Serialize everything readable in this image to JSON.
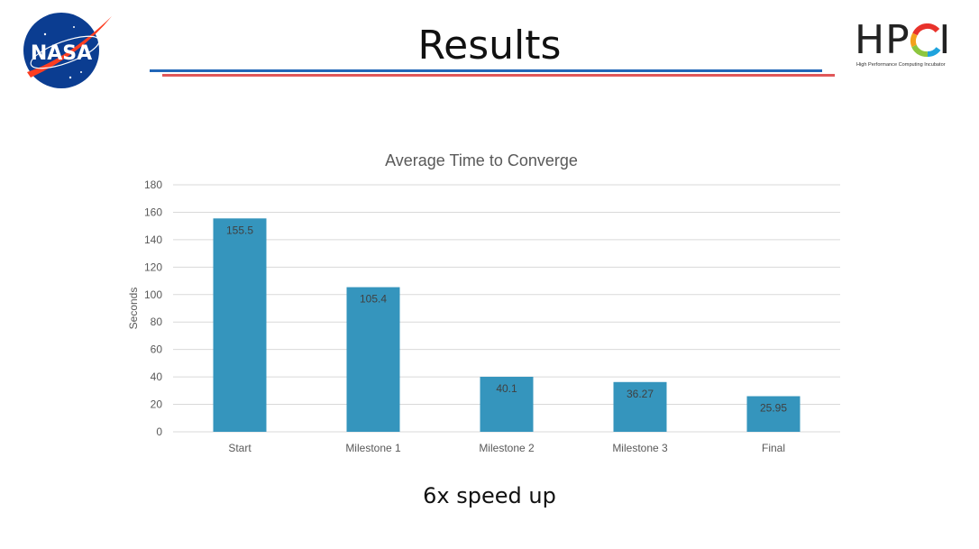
{
  "slide": {
    "title": "Results",
    "footer": "6x speed up"
  },
  "logos": {
    "left": {
      "name": "nasa-logo",
      "text": "NASA",
      "colors": {
        "blue": "#0b3d91",
        "red": "#fc3d21"
      }
    },
    "right": {
      "name": "hpci-logo",
      "text": "HPCI",
      "subtitle": "High Performance Computing Incubator"
    }
  },
  "colors": {
    "title_rule_blue": "#2166b8",
    "title_rule_red": "#e05759",
    "bar": "#3595bd",
    "grid": "#d9d9d9"
  },
  "chart_data": {
    "type": "bar",
    "title": "Average Time to Converge",
    "xlabel": "",
    "ylabel": "Seconds",
    "categories": [
      "Start",
      "Milestone 1",
      "Milestone 2",
      "Milestone 3",
      "Final"
    ],
    "values": [
      155.5,
      105.4,
      40.1,
      36.27,
      25.95
    ],
    "data_labels": [
      "155.5",
      "105.4",
      "40.1",
      "36.27",
      "25.95"
    ],
    "ylim": [
      0,
      180
    ],
    "yticks": [
      0,
      20,
      40,
      60,
      80,
      100,
      120,
      140,
      160,
      180
    ],
    "grid": true,
    "legend": "none"
  }
}
